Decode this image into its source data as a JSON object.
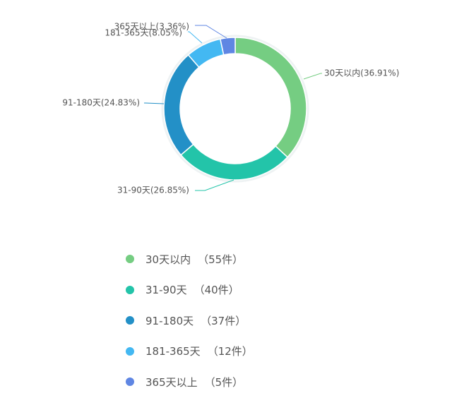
{
  "chart_data": {
    "type": "pie",
    "donut": true,
    "categories": [
      "30天以内",
      "31-90天",
      "91-180天",
      "181-365天",
      "365天以上"
    ],
    "values": [
      55,
      40,
      37,
      12,
      5
    ],
    "percent_labels": [
      "30天以内(36.91%)",
      "31-90天(26.85%)",
      "91-180天(24.83%)",
      "181-365天(8.05%)",
      "365天以上(3.36%)"
    ],
    "colors": [
      "#75CD82",
      "#23C4A9",
      "#2390C7",
      "#43B8F2",
      "#5F86E3"
    ],
    "legend": [
      {
        "label": "30天以内",
        "count": "（55件）"
      },
      {
        "label": "31-90天",
        "count": "（40件）"
      },
      {
        "label": "91-180天",
        "count": "（37件）"
      },
      {
        "label": "181-365天",
        "count": "（12件）"
      },
      {
        "label": "365天以上",
        "count": "（5件）"
      }
    ],
    "legend_position": "bottom"
  }
}
